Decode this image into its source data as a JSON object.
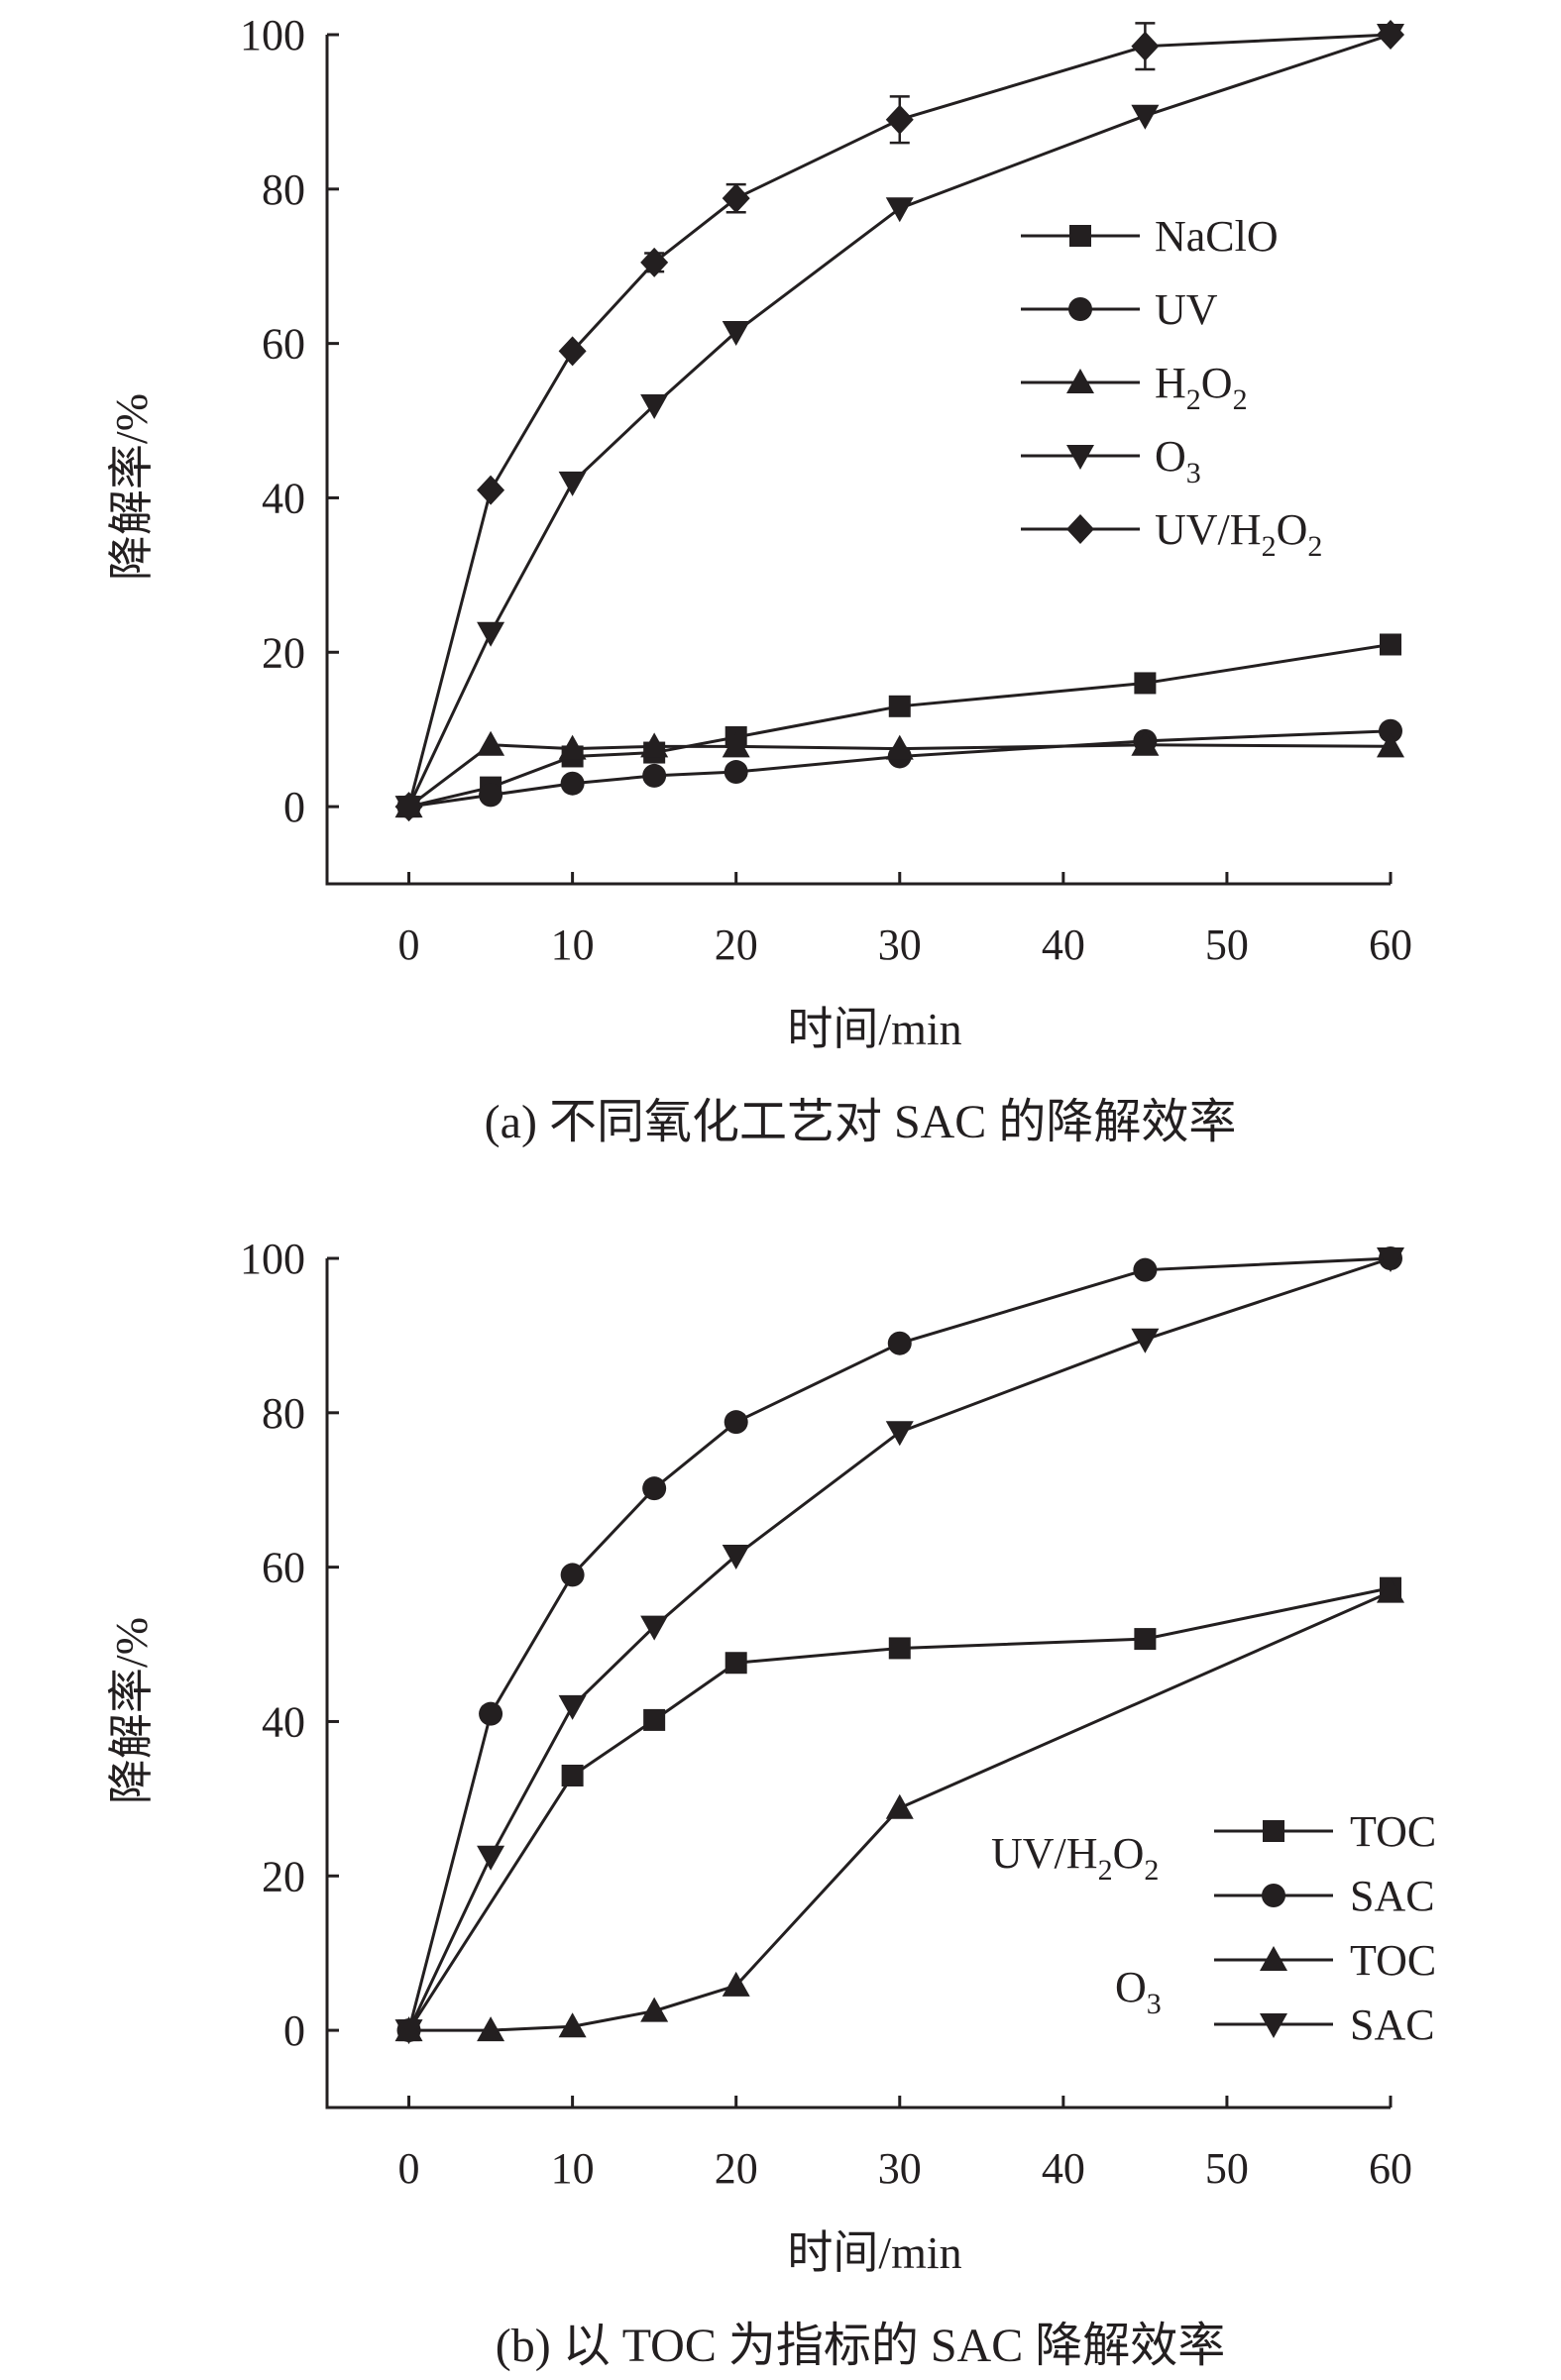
{
  "chart_data": [
    {
      "type": "line",
      "caption": "(a) 不同氧化工艺对 SAC 的降解效率",
      "xlabel": "时间/min",
      "ylabel": "降解率/%",
      "xlim": [
        -5,
        60
      ],
      "ylim": [
        -10,
        100
      ],
      "xticks": [
        0,
        10,
        20,
        30,
        40,
        50,
        60
      ],
      "yticks": [
        0,
        20,
        40,
        60,
        80,
        100
      ],
      "legend_position": "right-middle",
      "series": [
        {
          "name": "NaClO",
          "label_base": "NaClO",
          "label_sub": "",
          "label_tail": "",
          "label_sub2": "",
          "marker": "square",
          "x": [
            0,
            5,
            10,
            15,
            20,
            30,
            45,
            60
          ],
          "y": [
            0,
            2.5,
            6.5,
            7,
            9,
            13,
            16,
            21
          ]
        },
        {
          "name": "UV",
          "label_base": "UV",
          "label_sub": "",
          "label_tail": "",
          "label_sub2": "",
          "marker": "circle",
          "x": [
            0,
            5,
            10,
            15,
            20,
            30,
            45,
            60
          ],
          "y": [
            0,
            1.5,
            3,
            4,
            4.5,
            6.5,
            8.5,
            9.8
          ]
        },
        {
          "name": "H2O2",
          "label_base": "H",
          "label_sub": "2",
          "label_tail": "O",
          "label_sub2": "2",
          "marker": "triangle-up",
          "x": [
            0,
            5,
            10,
            15,
            20,
            30,
            45,
            60
          ],
          "y": [
            0,
            8,
            7.5,
            7.8,
            7.8,
            7.5,
            8,
            7.8
          ]
        },
        {
          "name": "O3",
          "label_base": "O",
          "label_sub": "3",
          "label_tail": "",
          "label_sub2": "",
          "marker": "triangle-down",
          "x": [
            0,
            5,
            10,
            15,
            20,
            30,
            45,
            60
          ],
          "y": [
            0,
            22.5,
            42,
            52,
            61.5,
            77.5,
            89.5,
            100
          ]
        },
        {
          "name": "UV/H2O2",
          "label_base": "UV/H",
          "label_sub": "2",
          "label_tail": "O",
          "label_sub2": "2",
          "marker": "diamond",
          "x": [
            0,
            5,
            10,
            15,
            20,
            30,
            45,
            60
          ],
          "y": [
            0,
            41,
            59,
            70.5,
            78.8,
            89,
            98.5,
            100
          ],
          "error": [
            0,
            0,
            0,
            1.2,
            1.8,
            3,
            3,
            0
          ]
        }
      ]
    },
    {
      "type": "line",
      "caption": "(b) 以 TOC 为指标的 SAC 降解效率",
      "xlabel": "时间/min",
      "ylabel": "降解率/%",
      "xlim": [
        -5,
        60
      ],
      "ylim": [
        -10,
        100
      ],
      "xticks": [
        0,
        10,
        20,
        30,
        40,
        50,
        60
      ],
      "yticks": [
        0,
        20,
        40,
        60,
        80,
        100
      ],
      "legend_position": "bottom-right",
      "legend_groups": [
        {
          "base": "UV/H",
          "sub": "2",
          "tail": "O",
          "sub2": "2",
          "items": [
            0,
            1
          ]
        },
        {
          "base": "O",
          "sub": "3",
          "tail": "",
          "sub2": "",
          "items": [
            2,
            3
          ]
        }
      ],
      "series": [
        {
          "name": "TOC",
          "label_base": "TOC",
          "label_sub": "",
          "label_tail": "",
          "label_sub2": "",
          "marker": "square",
          "x": [
            0,
            10,
            15,
            20,
            30,
            45,
            60
          ],
          "y": [
            0,
            33,
            40.2,
            47.6,
            49.5,
            50.7,
            57.3
          ]
        },
        {
          "name": "SAC",
          "label_base": "SAC",
          "label_sub": "",
          "label_tail": "",
          "label_sub2": "",
          "marker": "circle",
          "x": [
            0,
            5,
            10,
            15,
            20,
            30,
            45,
            60
          ],
          "y": [
            0,
            41,
            59,
            70.2,
            78.8,
            89,
            98.5,
            100
          ]
        },
        {
          "name": "TOC",
          "label_base": "TOC",
          "label_sub": "",
          "label_tail": "",
          "label_sub2": "",
          "marker": "triangle-up",
          "x": [
            0,
            5,
            10,
            15,
            20,
            30,
            60
          ],
          "y": [
            0,
            0,
            0.5,
            2.5,
            5.8,
            28.8,
            56.8
          ]
        },
        {
          "name": "SAC",
          "label_base": "SAC",
          "label_sub": "",
          "label_tail": "",
          "label_sub2": "",
          "marker": "triangle-down",
          "x": [
            0,
            5,
            10,
            15,
            20,
            30,
            45,
            60
          ],
          "y": [
            0,
            22.5,
            42,
            52.3,
            61.5,
            77.5,
            89.5,
            100
          ]
        }
      ]
    }
  ]
}
